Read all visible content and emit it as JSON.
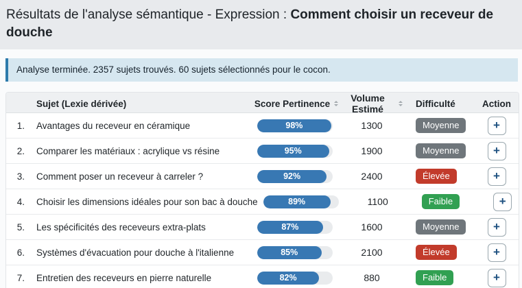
{
  "header": {
    "title_prefix": "Résultats de l'analyse sémantique - Expression : ",
    "title_expression": "Comment choisir un receveur de douche"
  },
  "alert": {
    "message": "Analyse terminée. 2357 sujets trouvés. 60 sujets sélectionnés pour le cocon."
  },
  "table": {
    "columns": {
      "subject": "Sujet (Lexie dérivée)",
      "score": "Score Pertinence",
      "volume": "Volume Estimé",
      "difficulty": "Difficulté",
      "action": "Action"
    },
    "add_button_label": "+",
    "rows": [
      {
        "num": "1.",
        "subject": "Avantages du receveur en céramique",
        "score": "98%",
        "score_value": 98,
        "volume": "1300",
        "difficulty": "Moyenne",
        "difficulty_level": "medium"
      },
      {
        "num": "2.",
        "subject": "Comparer les matériaux : acrylique vs résine",
        "score": "95%",
        "score_value": 95,
        "volume": "1900",
        "difficulty": "Moyenne",
        "difficulty_level": "medium"
      },
      {
        "num": "3.",
        "subject": "Comment poser un receveur à carreler ?",
        "score": "92%",
        "score_value": 92,
        "volume": "2400",
        "difficulty": "Élevée",
        "difficulty_level": "high"
      },
      {
        "num": "4.",
        "subject": "Choisir les dimensions idéales pour son bac à douche",
        "score": "89%",
        "score_value": 89,
        "volume": "1100",
        "difficulty": "Faible",
        "difficulty_level": "low"
      },
      {
        "num": "5.",
        "subject": "Les spécificités des receveurs extra-plats",
        "score": "87%",
        "score_value": 87,
        "volume": "1600",
        "difficulty": "Moyenne",
        "difficulty_level": "medium"
      },
      {
        "num": "6.",
        "subject": "Systèmes d'évacuation pour douche à l'italienne",
        "score": "85%",
        "score_value": 85,
        "volume": "2100",
        "difficulty": "Élevée",
        "difficulty_level": "high"
      },
      {
        "num": "7.",
        "subject": "Entretien des receveurs en pierre naturelle",
        "score": "82%",
        "score_value": 82,
        "volume": "880",
        "difficulty": "Faible",
        "difficulty_level": "low"
      }
    ]
  },
  "colors": {
    "score_bar_fill": "#3878b3",
    "score_bar_track": "#e9ebed",
    "badge_medium": "#6f767b",
    "badge_high": "#c23b2b",
    "badge_low": "#31a052",
    "alert_border": "#2d7aab",
    "alert_background": "#d6e7f0",
    "plus_glyph": "#1d5080"
  }
}
